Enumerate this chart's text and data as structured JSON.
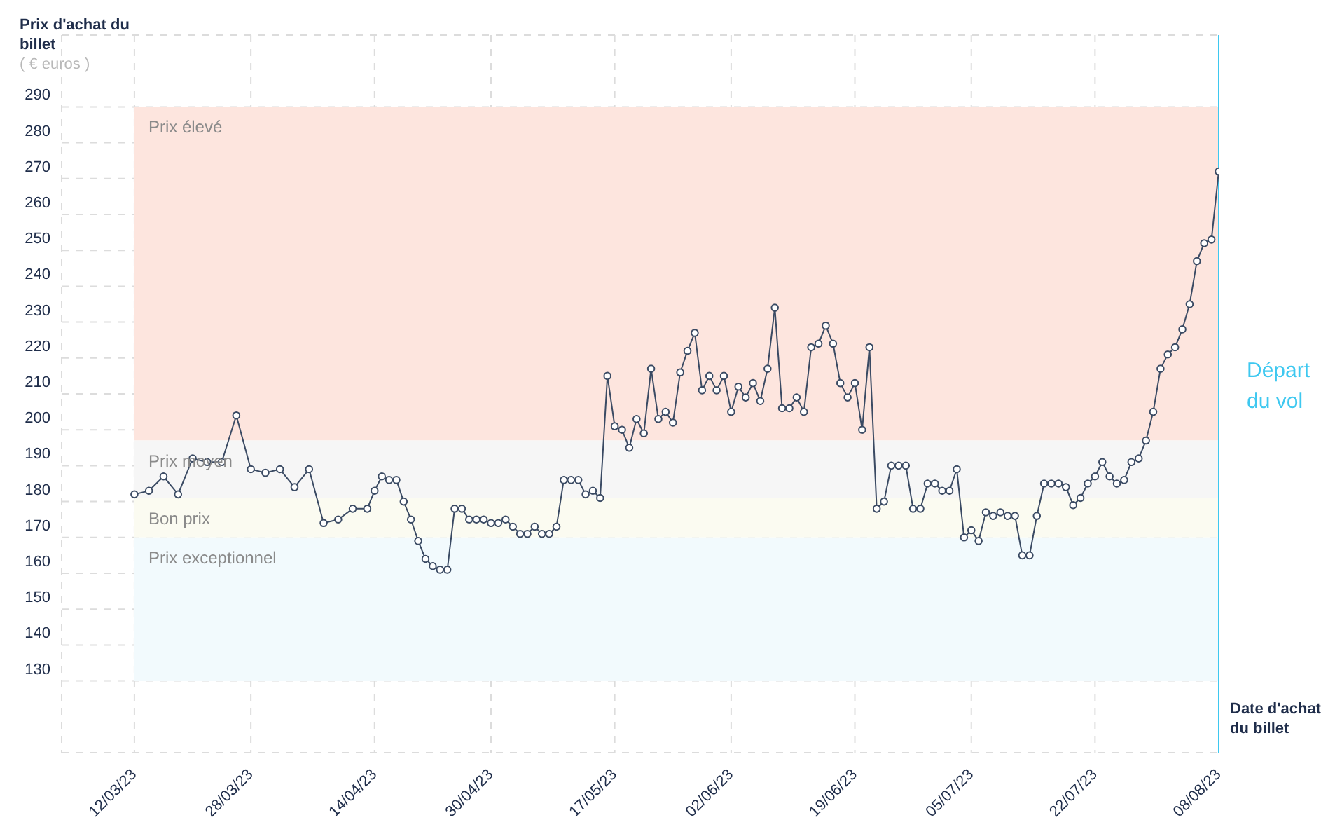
{
  "chart_data": {
    "type": "line",
    "ylabel": "Prix d'achat du billet",
    "xlabel": "Date d'achat du billet",
    "annotations": [
      "( € euros )"
    ],
    "x": [
      "2023-03-12",
      "2023-03-14",
      "2023-03-16",
      "2023-03-18",
      "2023-03-20",
      "2023-03-22",
      "2023-03-24",
      "2023-03-26",
      "2023-03-28",
      "2023-03-30",
      "2023-04-01",
      "2023-04-03",
      "2023-04-05",
      "2023-04-07",
      "2023-04-09",
      "2023-04-11",
      "2023-04-13",
      "2023-04-14",
      "2023-04-15",
      "2023-04-16",
      "2023-04-17",
      "2023-04-18",
      "2023-04-19",
      "2023-04-20",
      "2023-04-21",
      "2023-04-22",
      "2023-04-23",
      "2023-04-24",
      "2023-04-25",
      "2023-04-26",
      "2023-04-27",
      "2023-04-28",
      "2023-04-29",
      "2023-04-30",
      "2023-05-01",
      "2023-05-02",
      "2023-05-03",
      "2023-05-04",
      "2023-05-05",
      "2023-05-06",
      "2023-05-07",
      "2023-05-08",
      "2023-05-09",
      "2023-05-10",
      "2023-05-11",
      "2023-05-12",
      "2023-05-13",
      "2023-05-14",
      "2023-05-15",
      "2023-05-16",
      "2023-05-17",
      "2023-05-18",
      "2023-05-19",
      "2023-05-20",
      "2023-05-21",
      "2023-05-22",
      "2023-05-23",
      "2023-05-24",
      "2023-05-25",
      "2023-05-26",
      "2023-05-27",
      "2023-05-28",
      "2023-05-29",
      "2023-05-30",
      "2023-05-31",
      "2023-06-01",
      "2023-06-02",
      "2023-06-03",
      "2023-06-04",
      "2023-06-05",
      "2023-06-06",
      "2023-06-07",
      "2023-06-08",
      "2023-06-09",
      "2023-06-10",
      "2023-06-11",
      "2023-06-12",
      "2023-06-13",
      "2023-06-14",
      "2023-06-15",
      "2023-06-16",
      "2023-06-17",
      "2023-06-18",
      "2023-06-19",
      "2023-06-20",
      "2023-06-21",
      "2023-06-22",
      "2023-06-23",
      "2023-06-24",
      "2023-06-25",
      "2023-06-26",
      "2023-06-27",
      "2023-06-28",
      "2023-06-29",
      "2023-06-30",
      "2023-07-01",
      "2023-07-02",
      "2023-07-03",
      "2023-07-04",
      "2023-07-05",
      "2023-07-06",
      "2023-07-07",
      "2023-07-08",
      "2023-07-09",
      "2023-07-10",
      "2023-07-11",
      "2023-07-12",
      "2023-07-13",
      "2023-07-14",
      "2023-07-15",
      "2023-07-16",
      "2023-07-17",
      "2023-07-18",
      "2023-07-19",
      "2023-07-20",
      "2023-07-21",
      "2023-07-22",
      "2023-07-23",
      "2023-07-24",
      "2023-07-25",
      "2023-07-26",
      "2023-07-27",
      "2023-07-28",
      "2023-07-29",
      "2023-07-30",
      "2023-07-31",
      "2023-08-01",
      "2023-08-02",
      "2023-08-03",
      "2023-08-04",
      "2023-08-05",
      "2023-08-06",
      "2023-08-07",
      "2023-08-08"
    ],
    "series": [
      {
        "color": "#3a4a63",
        "values": [
          182,
          183,
          187,
          182,
          192,
          191,
          191,
          204,
          189,
          188,
          189,
          184,
          189,
          174,
          175,
          178,
          178,
          183,
          187,
          186,
          186,
          180,
          175,
          169,
          164,
          162,
          161,
          161,
          178,
          178,
          175,
          175,
          175,
          174,
          174,
          175,
          173,
          171,
          171,
          173,
          171,
          171,
          173,
          186,
          186,
          186,
          182,
          183,
          181,
          215,
          201,
          200,
          195,
          203,
          199,
          217,
          203,
          205,
          202,
          216,
          222,
          227,
          211,
          215,
          211,
          215,
          205,
          212,
          209,
          213,
          208,
          217,
          234,
          206,
          206,
          209,
          205,
          223,
          224,
          229,
          224,
          213,
          209,
          213,
          200,
          223,
          178,
          180,
          190,
          190,
          190,
          178,
          178,
          185,
          185,
          183,
          183,
          189,
          170,
          172,
          169,
          177,
          176,
          177,
          176,
          176,
          165,
          165,
          176,
          185,
          185,
          185,
          184,
          179,
          181,
          185,
          187,
          191,
          187,
          185,
          186,
          191,
          192,
          197,
          205,
          217,
          221,
          223,
          228,
          235,
          247,
          252,
          253,
          272
        ]
      }
    ],
    "xlim": [
      "2023-03-02",
      "2023-08-08"
    ],
    "xticks": [
      {
        "value": "2023-03-12",
        "label": "12/03/23"
      },
      {
        "value": "2023-03-28",
        "label": "28/03/23"
      },
      {
        "value": "2023-04-14",
        "label": "14/04/23"
      },
      {
        "value": "2023-04-30",
        "label": "30/04/23"
      },
      {
        "value": "2023-05-17",
        "label": "17/05/23"
      },
      {
        "value": "2023-06-02",
        "label": "02/06/23"
      },
      {
        "value": "2023-06-19",
        "label": "19/06/23"
      },
      {
        "value": "2023-07-05",
        "label": "05/07/23"
      },
      {
        "value": "2023-07-22",
        "label": "22/07/23"
      },
      {
        "value": "2023-08-08",
        "label": "08/08/23"
      }
    ],
    "ylim": [
      110,
      310
    ],
    "yticks": [
      130,
      140,
      150,
      160,
      170,
      180,
      190,
      200,
      210,
      220,
      230,
      240,
      250,
      260,
      270,
      280,
      290
    ],
    "grid": true,
    "marker": "circle",
    "line_style": "solid",
    "bands": [
      {
        "axis": "y",
        "from": 197,
        "to": 290,
        "label": "Prix élevé",
        "color": "#fde5de"
      },
      {
        "axis": "y",
        "from": 181,
        "to": 197,
        "label": "Prix moyen",
        "color": "#f6f6f6"
      },
      {
        "axis": "y",
        "from": 170,
        "to": 181,
        "label": "Bon prix",
        "color": "#fbfbf1"
      },
      {
        "axis": "y",
        "from": 130,
        "to": 170,
        "label": "Prix exceptionnel",
        "color": "#f2fafd"
      }
    ],
    "ref_lines": [
      {
        "axis": "x",
        "value": "2023-08-08",
        "label": "Départ du vol",
        "color": "#3ec8f0"
      }
    ]
  }
}
